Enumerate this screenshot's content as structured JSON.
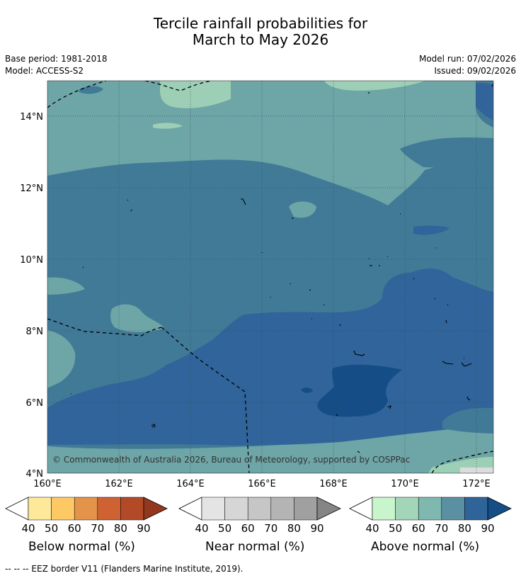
{
  "title_line1": "Tercile rainfall probabilities for",
  "title_line2": "March to May 2026",
  "base_period": "Base period: 1981-2018",
  "model": "Model: ACCESS-S2",
  "model_run": "Model run: 07/02/2026",
  "issued": "Issued: 09/02/2026",
  "copyright": "© Commonwealth of Australia 2026, Bureau of Meteorology, supported by COSPPac",
  "lat_labels": [
    "14°N",
    "12°N",
    "10°N",
    "8°N",
    "6°N",
    "4°N"
  ],
  "lon_labels": [
    "160°E",
    "162°E",
    "164°E",
    "166°E",
    "168°E",
    "170°E",
    "172°E"
  ],
  "colorbars": [
    {
      "label": "Below normal (%)",
      "ticks": [
        "40",
        "50",
        "60",
        "70",
        "80",
        "90"
      ],
      "colors": [
        "#fee89a",
        "#fdc965",
        "#e4944a",
        "#cf6233",
        "#b24a28"
      ],
      "end_color": "#93381e"
    },
    {
      "label": "Near normal (%)",
      "ticks": [
        "40",
        "50",
        "60",
        "70",
        "80",
        "90"
      ],
      "colors": [
        "#e4e4e4",
        "#d6d6d6",
        "#c6c6c6",
        "#b4b4b4",
        "#a0a0a0"
      ],
      "end_color": "#858585"
    },
    {
      "label": "Above normal (%)",
      "ticks": [
        "40",
        "50",
        "60",
        "70",
        "80",
        "90"
      ],
      "colors": [
        "#c9f5cd",
        "#a3d6b9",
        "#7fb8af",
        "#5a90a2",
        "#2f6499"
      ],
      "end_color": "#154d85"
    }
  ],
  "footnote": "--  --  -- EEZ border V11 (Flanders Marine Institute, 2019).",
  "map_colors": {
    "c60": "#6ea5a6",
    "c70": "#417a97",
    "c80": "#30649a",
    "c90": "#154e86",
    "c50": "#9ccfb5",
    "c40": "#c8f2ce"
  }
}
